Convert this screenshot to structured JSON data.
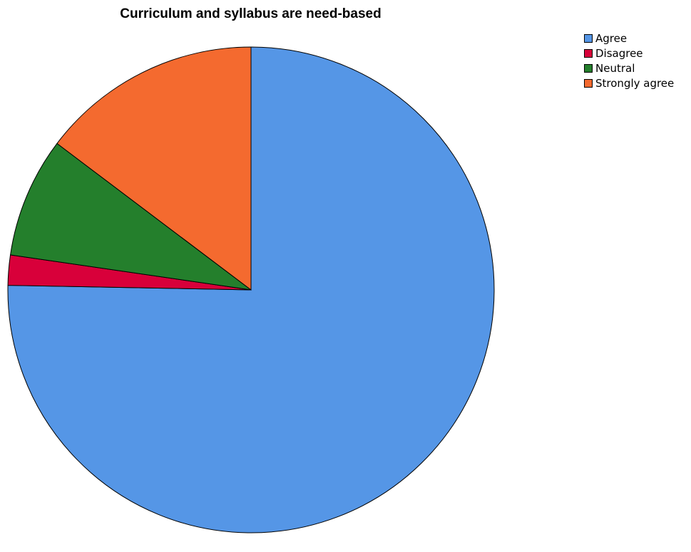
{
  "chart_data": {
    "type": "pie",
    "title": "Curriculum and syllabus are need-based",
    "legend_position": "top-right",
    "start_angle": "12 o'clock",
    "direction": "clockwise",
    "slices": [
      {
        "label": "Agree",
        "value": 75.3,
        "color": "#5596E6"
      },
      {
        "label": "Disagree",
        "value": 2.0,
        "color": "#D8003A"
      },
      {
        "label": "Neutral",
        "value": 8.0,
        "color": "#247F2C"
      },
      {
        "label": "Strongly agree",
        "value": 14.7,
        "color": "#F46A2F"
      }
    ]
  }
}
